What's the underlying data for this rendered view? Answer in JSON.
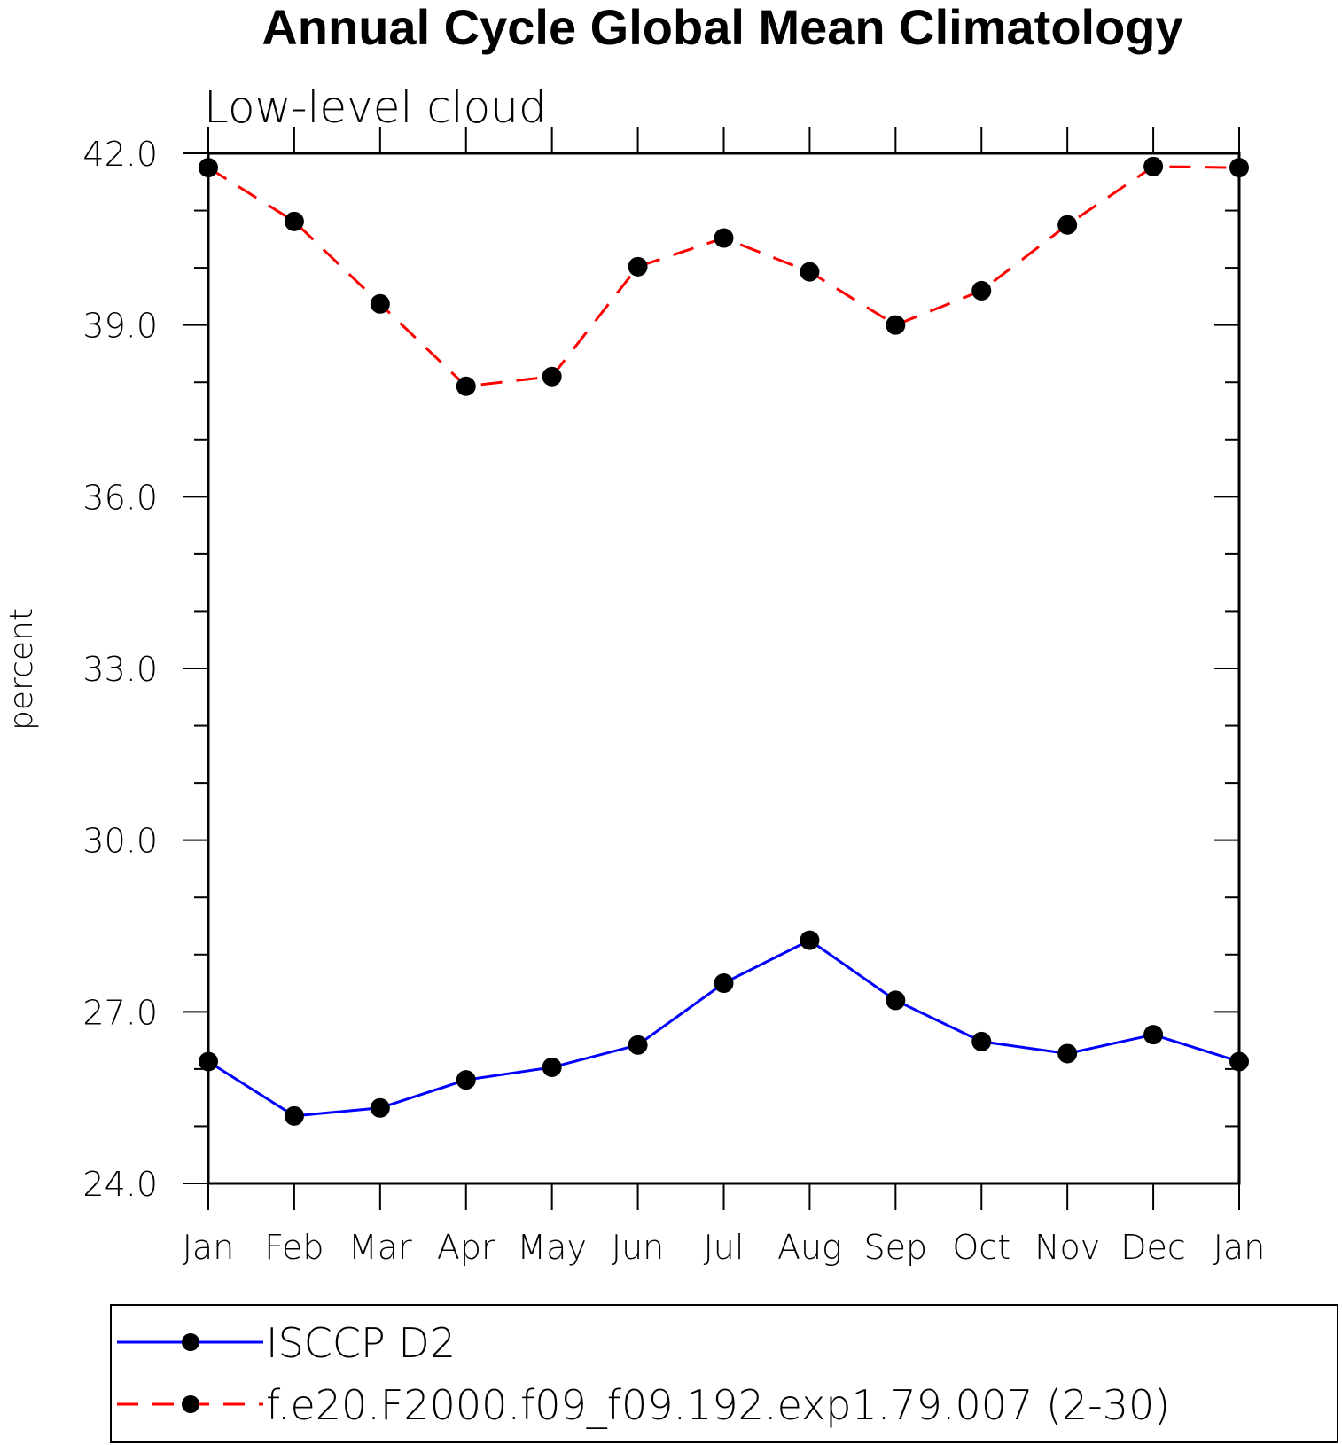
{
  "chart_data": {
    "type": "line",
    "title": "Annual Cycle Global Mean Climatology",
    "subtitle": "Low-level cloud",
    "ylabel": "percent",
    "xlabel": "",
    "ylim": [
      24.0,
      42.0
    ],
    "yticks": [
      "24.0",
      "27.0",
      "30.0",
      "33.0",
      "36.0",
      "39.0",
      "42.0"
    ],
    "categories": [
      "Jan",
      "Feb",
      "Mar",
      "Apr",
      "May",
      "Jun",
      "Jul",
      "Aug",
      "Sep",
      "Oct",
      "Nov",
      "Dec",
      "Jan"
    ],
    "grid": false,
    "legend_position": "bottom",
    "series": [
      {
        "name": "ISCCP D2",
        "color": "#0000ff",
        "line_style": "solid",
        "values": [
          26.13,
          25.18,
          25.32,
          25.81,
          26.03,
          26.42,
          27.5,
          28.25,
          27.2,
          26.48,
          26.27,
          26.6,
          26.13
        ]
      },
      {
        "name": "f.e20.F2000.f09_f09.192.exp1.79.007 (2-30)",
        "color": "#ff0000",
        "line_style": "dashed",
        "values": [
          41.75,
          40.81,
          39.37,
          37.93,
          38.1,
          40.02,
          40.52,
          39.93,
          39.0,
          39.6,
          40.75,
          41.77,
          41.75
        ]
      }
    ]
  }
}
